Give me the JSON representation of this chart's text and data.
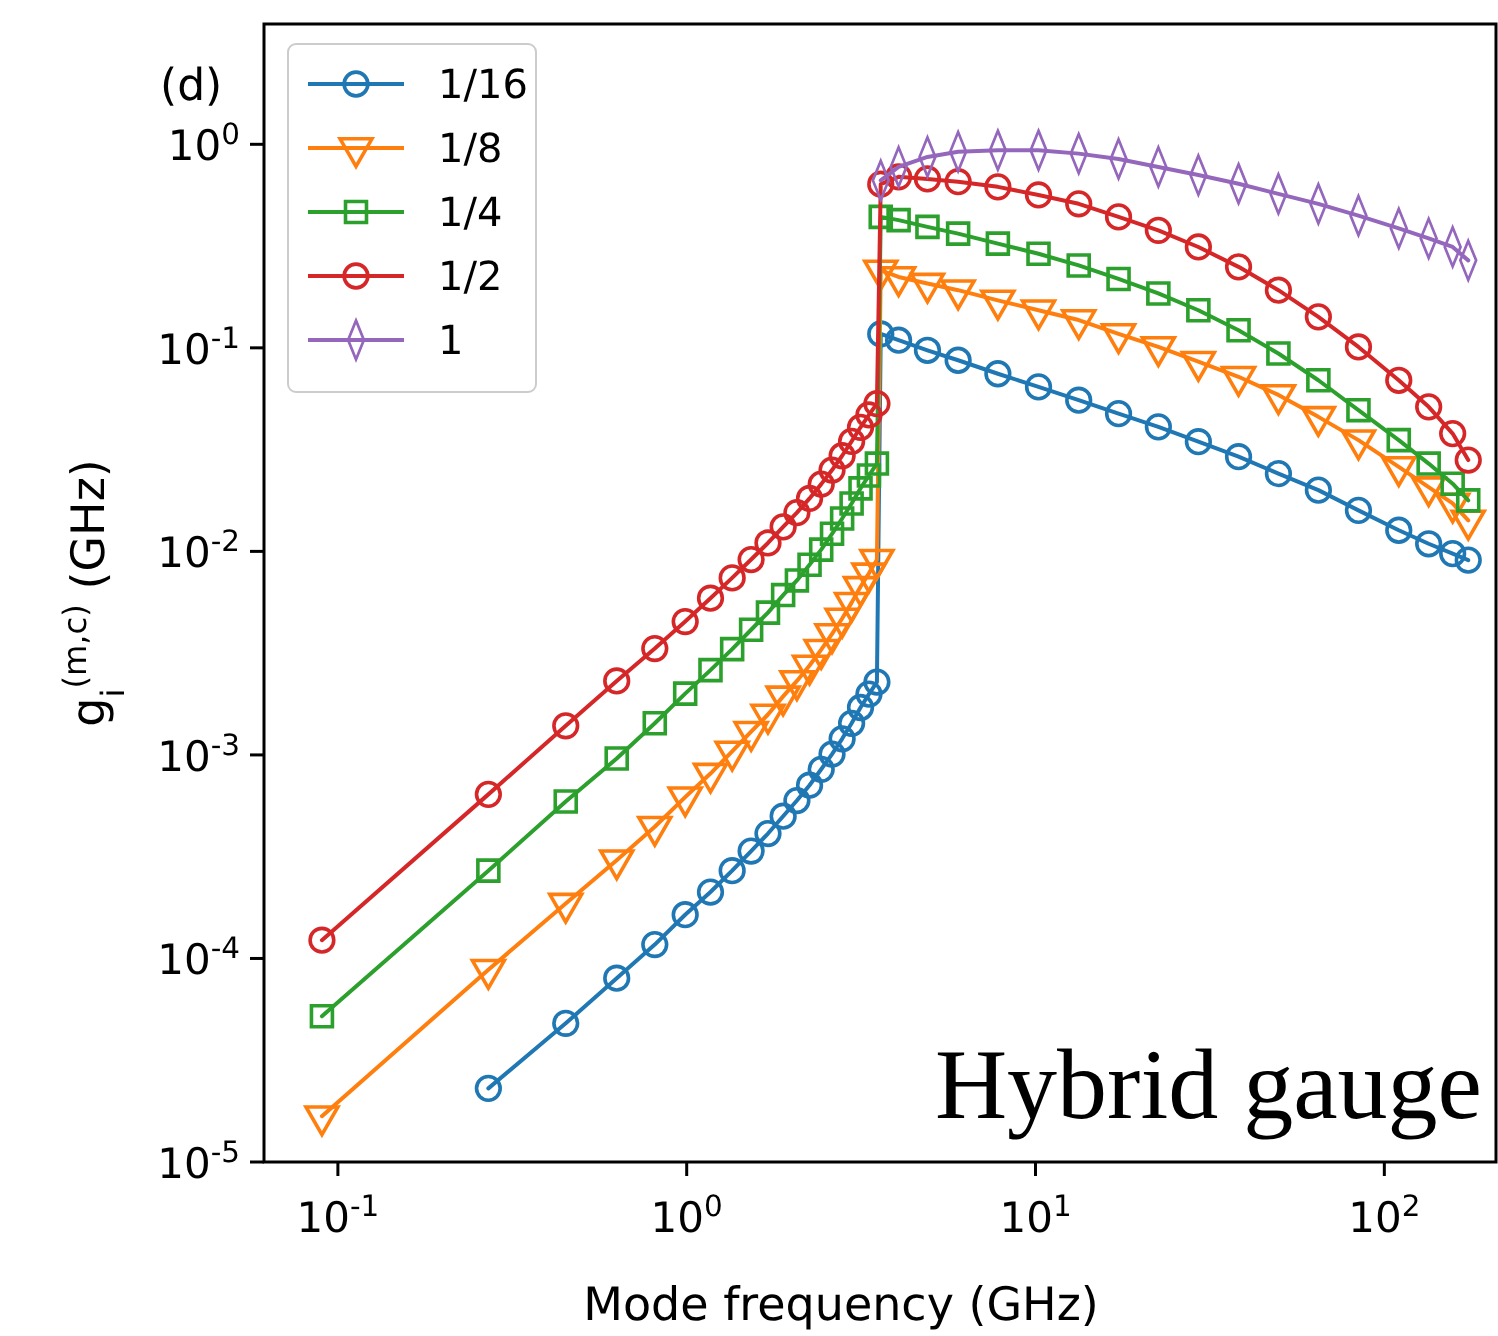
{
  "chart_data": {
    "type": "line",
    "xlabel": "Mode frequency (GHz)",
    "ylabel": "g$_{i}$$^{(m,c)}$ (GHz)",
    "log": "xy",
    "grid": false,
    "legend": "top left",
    "line_style": "solid",
    "annotations": [
      "(d)",
      "Hybrid gauge"
    ],
    "xlim": [
      0.0614,
      209
    ],
    "ylim": [
      1e-05,
      3.9
    ],
    "xticks": [
      {
        "value": 0.1,
        "label": "10$^{-1}$"
      },
      {
        "value": 1,
        "label": "10$^{0}$"
      },
      {
        "value": 10,
        "label": "10$^{1}$"
      },
      {
        "value": 100,
        "label": "10$^{2}$"
      }
    ],
    "yticks": [
      {
        "value": 1e-05,
        "label": "10$^{-5}$"
      },
      {
        "value": 0.0001,
        "label": "10$^{-4}$"
      },
      {
        "value": 0.001,
        "label": "10$^{-3}$"
      },
      {
        "value": 0.01,
        "label": "10$^{-2}$"
      },
      {
        "value": 0.1,
        "label": "10$^{-1}$"
      },
      {
        "value": 1,
        "label": "10$^{0}$"
      }
    ],
    "series": [
      {
        "name": "1/16",
        "color": "#1f77b4",
        "marker": "circle",
        "x": [
          0.27,
          0.45,
          0.63,
          0.81,
          0.99,
          1.17,
          1.35,
          1.53,
          1.71,
          1.89,
          2.07,
          2.25,
          2.43,
          2.61,
          2.79,
          2.97,
          3.15,
          3.33,
          3.51,
          3.6,
          4.05,
          4.9,
          6.0,
          7.8,
          10.2,
          13.3,
          17.3,
          22.5,
          29.3,
          38.2,
          49.7,
          64.7,
          84.3,
          110,
          134,
          157,
          174
        ],
        "values": [
          2.3e-05,
          4.8e-05,
          8e-05,
          0.000117,
          0.000164,
          0.000212,
          0.00027,
          0.000337,
          0.000411,
          0.0005,
          0.000597,
          0.00071,
          0.00085,
          0.00101,
          0.0012,
          0.00143,
          0.00171,
          0.00199,
          0.00228,
          0.117,
          0.109,
          0.0973,
          0.0869,
          0.0746,
          0.0643,
          0.0553,
          0.0475,
          0.0409,
          0.0346,
          0.0292,
          0.0241,
          0.02,
          0.0159,
          0.0127,
          0.0109,
          0.00975,
          0.00906
        ]
      },
      {
        "name": "1/8",
        "color": "#ff7f0e",
        "marker": "triangle",
        "x": [
          0.09,
          0.27,
          0.45,
          0.63,
          0.81,
          0.99,
          1.17,
          1.35,
          1.53,
          1.71,
          1.89,
          2.07,
          2.25,
          2.43,
          2.61,
          2.79,
          2.97,
          3.15,
          3.33,
          3.51,
          3.6,
          4.05,
          4.9,
          6.0,
          7.8,
          10.2,
          13.3,
          17.3,
          22.5,
          29.3,
          38.2,
          49.7,
          64.7,
          84.3,
          110,
          134,
          157,
          174
        ],
        "values": [
          1.68e-05,
          8.8e-05,
          0.000186,
          0.000304,
          0.000444,
          0.00062,
          0.00081,
          0.00104,
          0.0013,
          0.00158,
          0.00194,
          0.00231,
          0.00275,
          0.00329,
          0.00393,
          0.00468,
          0.0056,
          0.0067,
          0.0078,
          0.0091,
          0.24,
          0.223,
          0.207,
          0.192,
          0.171,
          0.153,
          0.137,
          0.117,
          0.101,
          0.0855,
          0.0721,
          0.0587,
          0.0458,
          0.0352,
          0.026,
          0.0207,
          0.0172,
          0.0142
        ]
      },
      {
        "name": "1/4",
        "color": "#2ca02c",
        "marker": "square",
        "x": [
          0.09,
          0.27,
          0.45,
          0.63,
          0.81,
          0.99,
          1.17,
          1.35,
          1.53,
          1.71,
          1.89,
          2.07,
          2.25,
          2.43,
          2.61,
          2.79,
          2.97,
          3.15,
          3.33,
          3.51,
          3.6,
          4.05,
          4.9,
          6.0,
          7.8,
          10.2,
          13.3,
          17.3,
          22.5,
          29.3,
          38.2,
          49.7,
          64.7,
          84.3,
          110,
          134,
          157,
          174
        ],
        "values": [
          5.2e-05,
          0.00027,
          0.00059,
          0.00096,
          0.00143,
          0.002,
          0.00261,
          0.00331,
          0.00412,
          0.005,
          0.0061,
          0.0072,
          0.0086,
          0.0102,
          0.0122,
          0.0145,
          0.0172,
          0.0204,
          0.0236,
          0.027,
          0.44,
          0.424,
          0.393,
          0.364,
          0.325,
          0.29,
          0.254,
          0.218,
          0.185,
          0.153,
          0.122,
          0.0938,
          0.0693,
          0.0494,
          0.0352,
          0.027,
          0.0215,
          0.0178
        ]
      },
      {
        "name": "1/2",
        "color": "#d62728",
        "marker": "circle",
        "x": [
          0.09,
          0.27,
          0.45,
          0.63,
          0.81,
          0.99,
          1.17,
          1.35,
          1.53,
          1.71,
          1.89,
          2.07,
          2.25,
          2.43,
          2.61,
          2.79,
          2.97,
          3.15,
          3.33,
          3.51,
          3.6,
          4.05,
          4.9,
          6.0,
          7.8,
          10.2,
          13.3,
          17.3,
          22.5,
          29.3,
          38.2,
          49.7,
          64.7,
          84.3,
          110,
          134,
          157,
          174
        ],
        "values": [
          0.000123,
          0.00064,
          0.00139,
          0.00231,
          0.00333,
          0.00452,
          0.00589,
          0.00741,
          0.00912,
          0.011,
          0.0132,
          0.0155,
          0.0182,
          0.0214,
          0.0251,
          0.0295,
          0.0347,
          0.0407,
          0.0468,
          0.0532,
          0.637,
          0.692,
          0.676,
          0.655,
          0.618,
          0.564,
          0.51,
          0.44,
          0.378,
          0.313,
          0.25,
          0.192,
          0.142,
          0.101,
          0.0693,
          0.0513,
          0.0379,
          0.0281
        ]
      },
      {
        "name": "1",
        "color": "#9467bd",
        "marker": "diamond",
        "x": [
          3.6,
          4.05,
          4.9,
          6.0,
          7.8,
          10.2,
          13.3,
          17.3,
          22.5,
          29.3,
          38.2,
          49.7,
          64.7,
          84.3,
          110,
          134,
          157,
          174
        ],
        "values": [
          0.665,
          0.774,
          0.867,
          0.92,
          0.935,
          0.935,
          0.9,
          0.847,
          0.774,
          0.706,
          0.64,
          0.571,
          0.51,
          0.446,
          0.386,
          0.345,
          0.313,
          0.269
        ]
      }
    ]
  }
}
